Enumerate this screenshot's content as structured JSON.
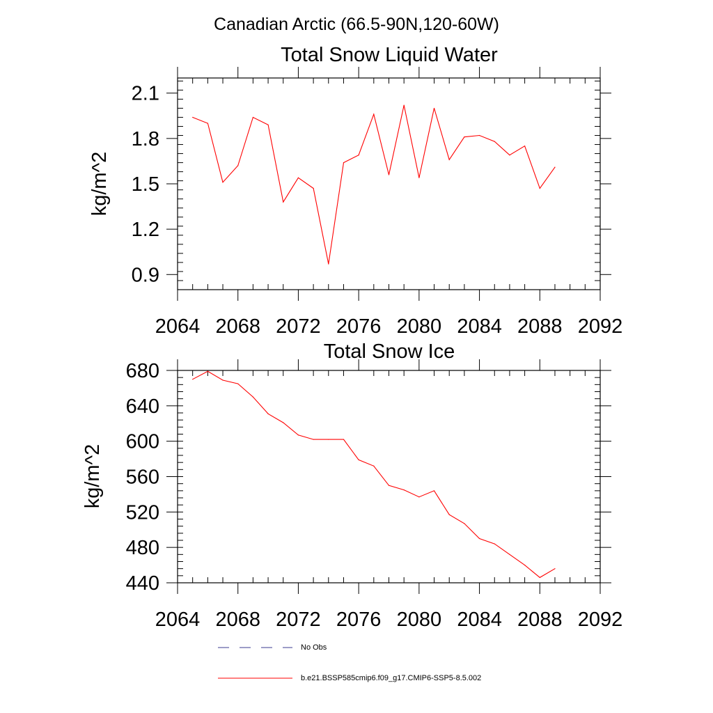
{
  "figure": {
    "title": "Canadian Arctic (66.5-90N,120-60W)"
  },
  "colors": {
    "series": "#ff0000",
    "obs": "#3b3b8f",
    "axis": "#000000"
  },
  "chart_data": [
    {
      "type": "line",
      "title": "Total Snow Liquid Water",
      "xlabel": "",
      "ylabel": "kg/m^2",
      "xlim": [
        2064,
        2092
      ],
      "ylim": [
        0.8,
        2.2
      ],
      "xticks": [
        2064,
        2068,
        2072,
        2076,
        2080,
        2084,
        2088,
        2092
      ],
      "yticks": [
        0.9,
        1.2,
        1.5,
        1.8,
        2.1
      ],
      "ytick_labels": [
        "0.9",
        "1.2",
        "1.5",
        "1.8",
        "2.1"
      ],
      "grid": false,
      "series": [
        {
          "name": "b.e21.BSSP585cmip6.f09_g17.CMIP6-SSP5-8.5.002",
          "x": [
            2065,
            2066,
            2067,
            2068,
            2069,
            2070,
            2071,
            2072,
            2073,
            2074,
            2075,
            2076,
            2077,
            2078,
            2079,
            2080,
            2081,
            2082,
            2083,
            2084,
            2085,
            2086,
            2087,
            2088,
            2089
          ],
          "values": [
            1.94,
            1.9,
            1.51,
            1.62,
            1.94,
            1.89,
            1.38,
            1.54,
            1.47,
            0.97,
            1.64,
            1.69,
            1.96,
            1.56,
            2.02,
            1.54,
            2.0,
            1.66,
            1.81,
            1.82,
            1.78,
            1.69,
            1.75,
            1.47,
            1.61
          ]
        }
      ]
    },
    {
      "type": "line",
      "title": "Total Snow Ice",
      "xlabel": "",
      "ylabel": "kg/m^2",
      "xlim": [
        2064,
        2092
      ],
      "ylim": [
        440,
        680
      ],
      "xticks": [
        2064,
        2068,
        2072,
        2076,
        2080,
        2084,
        2088,
        2092
      ],
      "yticks": [
        440,
        480,
        520,
        560,
        600,
        640,
        680
      ],
      "ytick_labels": [
        "440",
        "480",
        "520",
        "560",
        "600",
        "640",
        "680"
      ],
      "grid": false,
      "series": [
        {
          "name": "b.e21.BSSP585cmip6.f09_g17.CMIP6-SSP5-8.5.002",
          "x": [
            2065,
            2066,
            2067,
            2068,
            2069,
            2070,
            2071,
            2072,
            2073,
            2074,
            2075,
            2076,
            2077,
            2078,
            2079,
            2080,
            2081,
            2082,
            2083,
            2084,
            2085,
            2086,
            2087,
            2088,
            2089
          ],
          "values": [
            670,
            679,
            669,
            665,
            650,
            631,
            621,
            607,
            602,
            602,
            602,
            579,
            572,
            550,
            545,
            537,
            544,
            517,
            507,
            490,
            484,
            472,
            460,
            446,
            456
          ]
        }
      ]
    }
  ],
  "legend": {
    "items": [
      {
        "label": "No Obs",
        "style": "dashed"
      },
      {
        "label": "b.e21.BSSP585cmip6.f09_g17.CMIP6-SSP5-8.5.002",
        "style": "solid"
      }
    ]
  }
}
